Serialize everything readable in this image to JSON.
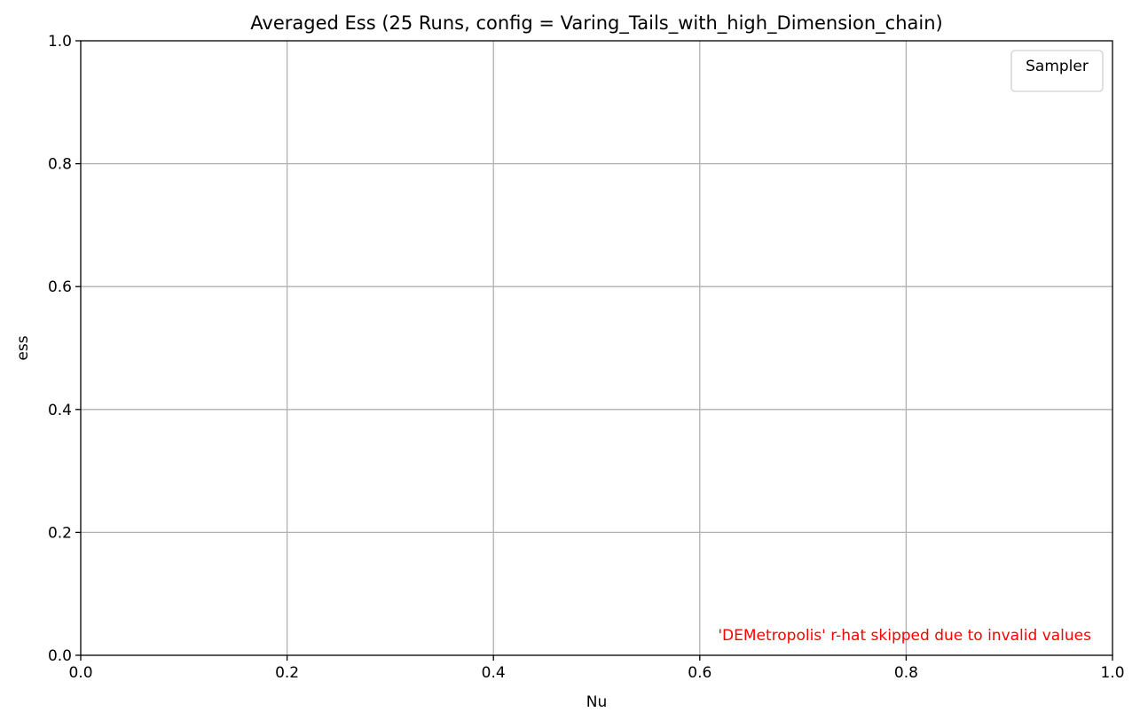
{
  "chart_data": {
    "type": "line",
    "title": "Averaged Ess (25 Runs, config = Varing_Tails_with_high_Dimension_chain)",
    "xlabel": "Nu",
    "ylabel": "ess",
    "xlim": [
      0.0,
      1.0
    ],
    "ylim": [
      0.0,
      1.0
    ],
    "xticks": [
      "0.0",
      "0.2",
      "0.4",
      "0.6",
      "0.8",
      "1.0"
    ],
    "yticks": [
      "0.0",
      "0.2",
      "0.4",
      "0.6",
      "0.8",
      "1.0"
    ],
    "xtick_values": [
      0.0,
      0.2,
      0.4,
      0.6,
      0.8,
      1.0
    ],
    "ytick_values": [
      0.0,
      0.2,
      0.4,
      0.6,
      0.8,
      1.0
    ],
    "grid": true,
    "series": [],
    "legend": {
      "title": "Sampler",
      "placement": "top-right",
      "entries": []
    },
    "annotation": {
      "text": "'DEMetropolis' r-hat skipped due to invalid values",
      "color": "#ff0000",
      "placement": "bottom-right"
    }
  }
}
